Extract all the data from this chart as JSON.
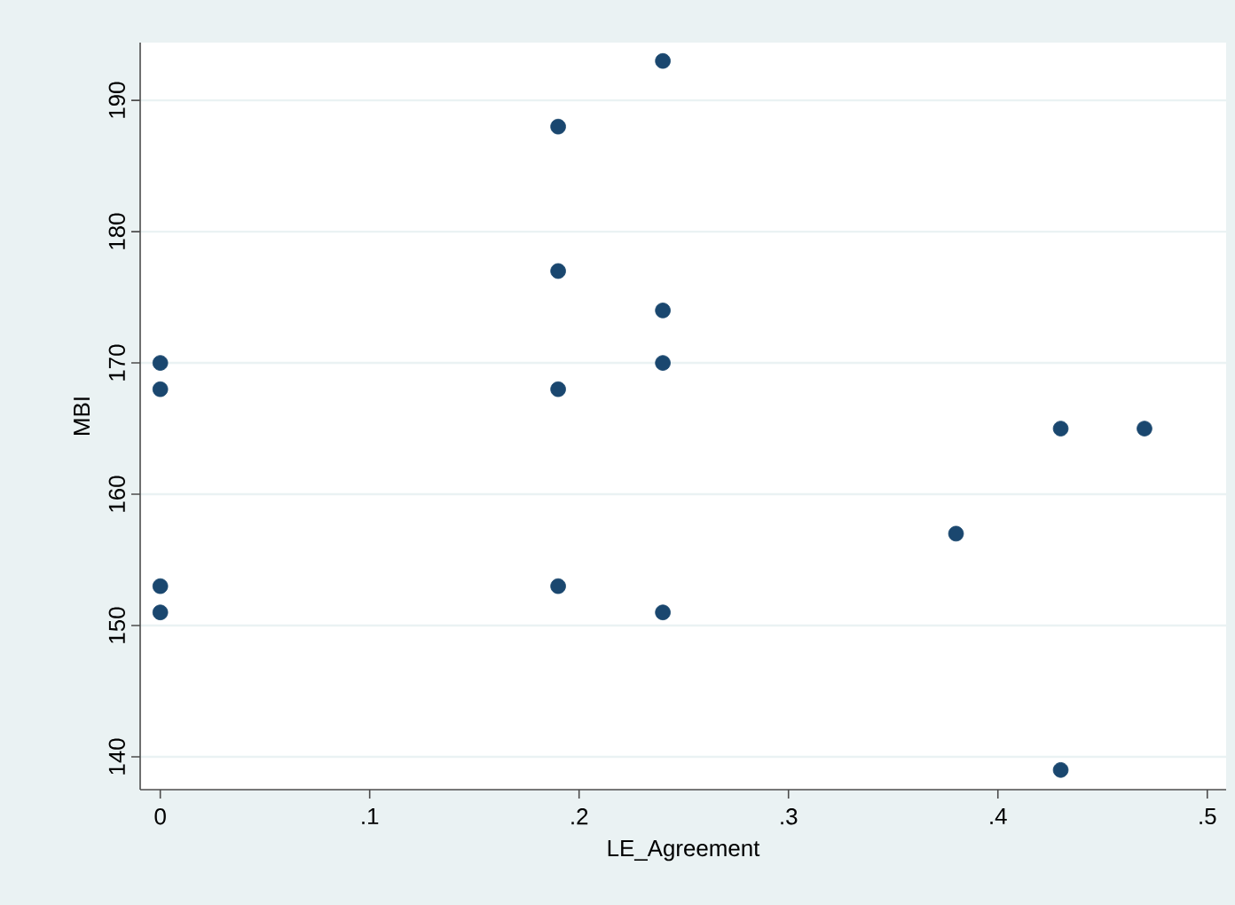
{
  "chart_data": {
    "type": "scatter",
    "xlabel": "LE_Agreement",
    "ylabel": "MBI",
    "x": [
      0,
      0,
      0,
      0,
      0.19,
      0.19,
      0.19,
      0.19,
      0.24,
      0.24,
      0.24,
      0.24,
      0.38,
      0.43,
      0.47,
      0.43
    ],
    "values": [
      170,
      168,
      153,
      151,
      188,
      177,
      168,
      153,
      193,
      174,
      170,
      151,
      157,
      165,
      165,
      139
    ],
    "color": "#1a476f",
    "marker": "circle",
    "grid": "y",
    "xlim": [
      -0.0096,
      0.509
    ],
    "ylim": [
      137.5,
      194.4
    ],
    "xticks": [
      0,
      {
        "value": 0.1,
        "label": ".1"
      },
      {
        "value": 0.2,
        "label": ".2"
      },
      {
        "value": 0.3,
        "label": ".3"
      },
      {
        "value": 0.4,
        "label": ".4"
      },
      {
        "value": 0.5,
        "label": ".5"
      }
    ],
    "yticks": [
      140,
      150,
      160,
      170,
      180,
      190
    ]
  }
}
